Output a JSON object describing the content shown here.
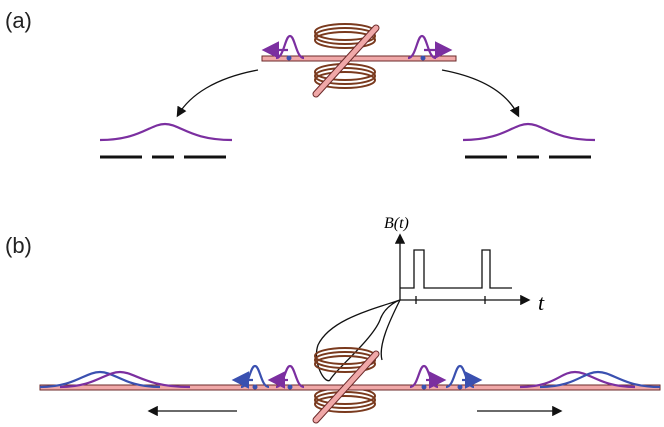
{
  "panels": [
    {
      "label": "(a)"
    },
    {
      "label": "(b)",
      "inset": {
        "y_label": "B(t)",
        "x_label": "t"
      }
    }
  ]
}
